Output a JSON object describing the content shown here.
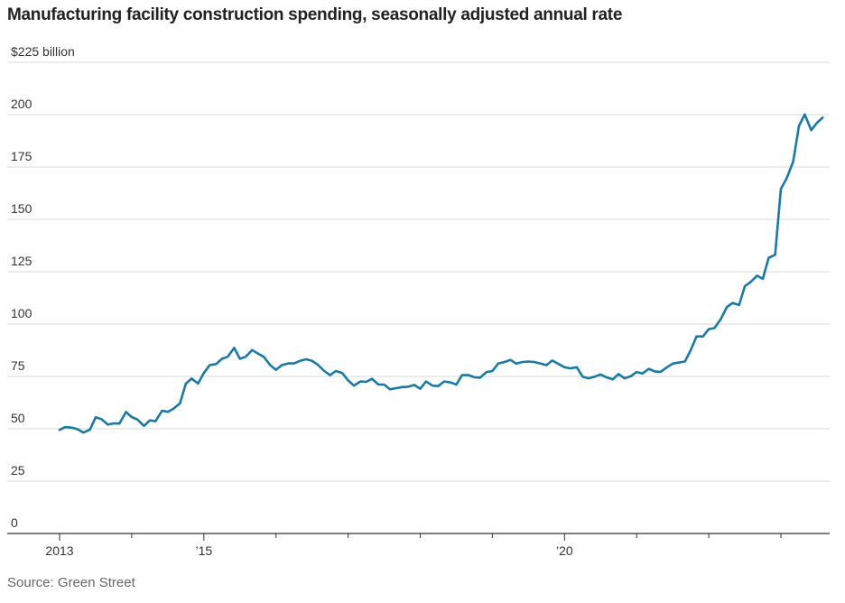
{
  "title": "Manufacturing facility construction spending, seasonally adjusted annual rate",
  "source": "Source: Green Street",
  "colors": {
    "line": "#1a7aa6",
    "grid": "#d9d9d9",
    "axis": "#333333"
  },
  "chart_data": {
    "type": "line",
    "title": "Manufacturing facility construction spending, seasonally adjusted annual rate",
    "xlabel": "",
    "ylabel": "",
    "ylim": [
      0,
      225
    ],
    "yticks": [
      0,
      25,
      50,
      75,
      100,
      125,
      150,
      175,
      200,
      225
    ],
    "ytick_labels": [
      "0",
      "25",
      "50",
      "75",
      "100",
      "125",
      "150",
      "175",
      "200",
      "$225 billion"
    ],
    "xlim": [
      2013,
      2023.75
    ],
    "xtick_labels": [
      {
        "x": 2013,
        "label": "2013"
      },
      {
        "x": 2015,
        "label": "’15"
      },
      {
        "x": 2020,
        "label": "’20"
      }
    ],
    "minor_xticks": [
      2014,
      2016,
      2017,
      2018,
      2019,
      2021,
      2022,
      2023
    ],
    "grid": true,
    "series": [
      {
        "values": [
          [
            2013.0,
            49.5
          ],
          [
            2013.08,
            50.8
          ],
          [
            2013.17,
            50.5
          ],
          [
            2013.25,
            49.8
          ],
          [
            2013.33,
            48.2
          ],
          [
            2013.42,
            49.6
          ],
          [
            2013.5,
            55.5
          ],
          [
            2013.58,
            54.6
          ],
          [
            2013.67,
            52.0
          ],
          [
            2013.75,
            52.6
          ],
          [
            2013.83,
            52.5
          ],
          [
            2013.92,
            58.0
          ],
          [
            2014.0,
            55.6
          ],
          [
            2014.08,
            54.4
          ],
          [
            2014.17,
            51.4
          ],
          [
            2014.25,
            54.0
          ],
          [
            2014.33,
            53.6
          ],
          [
            2014.42,
            58.6
          ],
          [
            2014.5,
            58.1
          ],
          [
            2014.58,
            59.6
          ],
          [
            2014.67,
            62.2
          ],
          [
            2014.75,
            71.5
          ],
          [
            2014.83,
            74.0
          ],
          [
            2014.92,
            71.6
          ],
          [
            2015.0,
            76.6
          ],
          [
            2015.08,
            80.4
          ],
          [
            2015.17,
            80.9
          ],
          [
            2015.25,
            83.4
          ],
          [
            2015.33,
            84.4
          ],
          [
            2015.42,
            88.6
          ],
          [
            2015.5,
            83.4
          ],
          [
            2015.58,
            84.4
          ],
          [
            2015.67,
            87.6
          ],
          [
            2015.75,
            85.9
          ],
          [
            2015.83,
            84.4
          ],
          [
            2015.92,
            80.4
          ],
          [
            2016.0,
            78.1
          ],
          [
            2016.08,
            80.4
          ],
          [
            2016.17,
            81.2
          ],
          [
            2016.25,
            81.2
          ],
          [
            2016.33,
            82.4
          ],
          [
            2016.42,
            83.2
          ],
          [
            2016.5,
            82.4
          ],
          [
            2016.58,
            80.6
          ],
          [
            2016.67,
            77.6
          ],
          [
            2016.75,
            75.6
          ],
          [
            2016.83,
            77.6
          ],
          [
            2016.92,
            76.6
          ],
          [
            2017.0,
            73.1
          ],
          [
            2017.08,
            70.6
          ],
          [
            2017.17,
            72.6
          ],
          [
            2017.25,
            72.4
          ],
          [
            2017.33,
            73.9
          ],
          [
            2017.42,
            71.1
          ],
          [
            2017.5,
            71.1
          ],
          [
            2017.58,
            68.9
          ],
          [
            2017.67,
            69.4
          ],
          [
            2017.75,
            69.9
          ],
          [
            2017.83,
            70.1
          ],
          [
            2017.92,
            70.9
          ],
          [
            2018.0,
            69.1
          ],
          [
            2018.08,
            72.6
          ],
          [
            2018.17,
            70.6
          ],
          [
            2018.25,
            70.4
          ],
          [
            2018.33,
            72.6
          ],
          [
            2018.42,
            72.1
          ],
          [
            2018.5,
            71.1
          ],
          [
            2018.58,
            75.6
          ],
          [
            2018.67,
            75.6
          ],
          [
            2018.75,
            74.6
          ],
          [
            2018.83,
            74.4
          ],
          [
            2018.92,
            77.1
          ],
          [
            2019.0,
            77.6
          ],
          [
            2019.08,
            81.1
          ],
          [
            2019.17,
            81.9
          ],
          [
            2019.25,
            82.9
          ],
          [
            2019.33,
            81.1
          ],
          [
            2019.42,
            81.9
          ],
          [
            2019.5,
            82.1
          ],
          [
            2019.58,
            81.9
          ],
          [
            2019.67,
            81.1
          ],
          [
            2019.75,
            80.4
          ],
          [
            2019.83,
            82.6
          ],
          [
            2019.92,
            80.9
          ],
          [
            2020.0,
            79.4
          ],
          [
            2020.08,
            78.9
          ],
          [
            2020.17,
            79.4
          ],
          [
            2020.25,
            74.9
          ],
          [
            2020.33,
            74.1
          ],
          [
            2020.42,
            74.9
          ],
          [
            2020.5,
            75.9
          ],
          [
            2020.58,
            74.6
          ],
          [
            2020.67,
            73.6
          ],
          [
            2020.75,
            76.1
          ],
          [
            2020.83,
            74.1
          ],
          [
            2020.92,
            75.1
          ],
          [
            2021.0,
            77.1
          ],
          [
            2021.08,
            76.4
          ],
          [
            2021.17,
            78.6
          ],
          [
            2021.25,
            77.4
          ],
          [
            2021.33,
            77.1
          ],
          [
            2021.42,
            79.4
          ],
          [
            2021.5,
            81.1
          ],
          [
            2021.58,
            81.6
          ],
          [
            2021.67,
            82.1
          ],
          [
            2021.75,
            87.6
          ],
          [
            2021.83,
            94.1
          ],
          [
            2021.92,
            94.1
          ],
          [
            2022.0,
            97.6
          ],
          [
            2022.08,
            98.1
          ],
          [
            2022.17,
            102.6
          ],
          [
            2022.25,
            108.1
          ],
          [
            2022.33,
            110.1
          ],
          [
            2022.42,
            109.1
          ],
          [
            2022.5,
            118.1
          ],
          [
            2022.58,
            120.1
          ],
          [
            2022.67,
            123.1
          ],
          [
            2022.75,
            121.6
          ],
          [
            2022.83,
            131.6
          ],
          [
            2022.92,
            133.1
          ],
          [
            2023.0,
            164.6
          ],
          [
            2023.08,
            169.6
          ],
          [
            2023.17,
            177.6
          ],
          [
            2023.25,
            194.6
          ],
          [
            2023.33,
            200.1
          ],
          [
            2023.42,
            192.6
          ],
          [
            2023.5,
            196.1
          ],
          [
            2023.58,
            198.6
          ]
        ]
      }
    ]
  }
}
